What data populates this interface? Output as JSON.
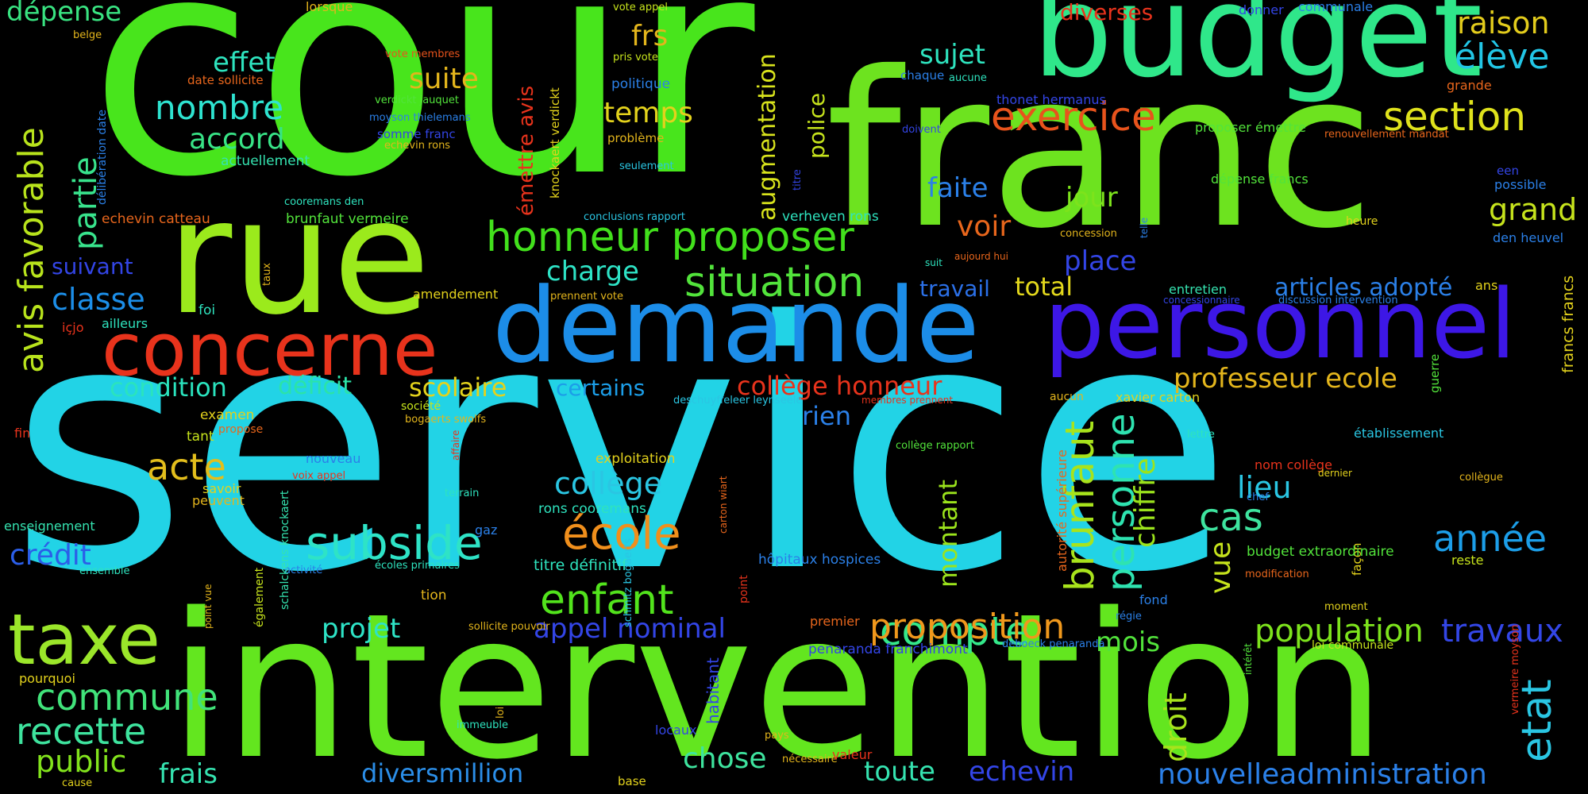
{
  "words": [
    {
      "text": "service",
      "color": "#22d3e6"
    },
    {
      "text": "cour",
      "color": "#48e51c"
    },
    {
      "text": "franc",
      "color": "#6de31f"
    },
    {
      "text": "intervention",
      "color": "#63e61f"
    },
    {
      "text": "budget",
      "color": "#2fe78a"
    },
    {
      "text": "rue",
      "color": "#9bea1c"
    },
    {
      "text": "demande",
      "color": "#1c8de8"
    },
    {
      "text": "personnel",
      "color": "#3d17e6"
    },
    {
      "text": "concerne",
      "color": "#e8331c"
    },
    {
      "text": "taxe",
      "color": "#9be62a"
    },
    {
      "text": "honneur proposer",
      "color": "#42e01c"
    },
    {
      "text": "situation",
      "color": "#52e33b"
    },
    {
      "text": "subside",
      "color": "#2ee3c6"
    },
    {
      "text": "école",
      "color": "#f08f1c"
    },
    {
      "text": "enfant",
      "color": "#52e31c"
    },
    {
      "text": "compte",
      "color": "#34e88a"
    },
    {
      "text": "exercice",
      "color": "#e8531c"
    },
    {
      "text": "section",
      "color": "#dfe21c"
    },
    {
      "text": "élève",
      "color": "#22c6e6"
    },
    {
      "text": "raison",
      "color": "#e3cc1c"
    },
    {
      "text": "grand",
      "color": "#c6e31c"
    },
    {
      "text": "année",
      "color": "#1c9ee8"
    },
    {
      "text": "etat",
      "color": "#2ac6e3"
    },
    {
      "text": "travaux",
      "color": "#3346e6"
    },
    {
      "text": "population",
      "color": "#7de31c"
    },
    {
      "text": "proposition",
      "color": "#f0981c"
    },
    {
      "text": "commune",
      "color": "#41e37a"
    },
    {
      "text": "recette",
      "color": "#3ee39e"
    },
    {
      "text": "public",
      "color": "#82e31c"
    },
    {
      "text": "frais",
      "color": "#35e3b0"
    },
    {
      "text": "crédit",
      "color": "#2b5ee8"
    },
    {
      "text": "acte",
      "color": "#e3be1c"
    },
    {
      "text": "classe",
      "color": "#1c8ee8"
    },
    {
      "text": "nombre",
      "color": "#2ee3d0"
    },
    {
      "text": "accord",
      "color": "#38e386"
    },
    {
      "text": "effet",
      "color": "#2ee3be"
    },
    {
      "text": "dépense",
      "color": "#39e381"
    },
    {
      "text": "avis favorable",
      "color": "#b8e31c"
    },
    {
      "text": "partie",
      "color": "#38e38c"
    },
    {
      "text": "suivant",
      "color": "#3345e6"
    },
    {
      "text": "condition",
      "color": "#2ae3be"
    },
    {
      "text": "déficit",
      "color": "#2be3a8"
    },
    {
      "text": "scolaire",
      "color": "#e3d21c"
    },
    {
      "text": "certains",
      "color": "#1c9ee8"
    },
    {
      "text": "collège honneur",
      "color": "#e8331c"
    },
    {
      "text": "professeur ecole",
      "color": "#e3b51c"
    },
    {
      "text": "articles adopté",
      "color": "#2b80e8"
    },
    {
      "text": "total",
      "color": "#e3d81c"
    },
    {
      "text": "place",
      "color": "#3345e6"
    },
    {
      "text": "travail",
      "color": "#2b70e8"
    },
    {
      "text": "charge",
      "color": "#2ee3c6"
    },
    {
      "text": "voir",
      "color": "#e8661c"
    },
    {
      "text": "faite",
      "color": "#2b80e8"
    },
    {
      "text": "jour",
      "color": "#7de31c"
    },
    {
      "text": "sujet",
      "color": "#2ee3be"
    },
    {
      "text": "temps",
      "color": "#e3d21c"
    },
    {
      "text": "frs",
      "color": "#e3b51c"
    },
    {
      "text": "suite",
      "color": "#e3b51c"
    },
    {
      "text": "rien",
      "color": "#2b80e8"
    },
    {
      "text": "collège",
      "color": "#2ac6e3"
    },
    {
      "text": "brunfaut",
      "color": "#a8e31c"
    },
    {
      "text": "personne",
      "color": "#2ee3b0"
    },
    {
      "text": "chiffre",
      "color": "#9be31c"
    },
    {
      "text": "cas",
      "color": "#3ee39e"
    },
    {
      "text": "lieu",
      "color": "#2ac6e3"
    },
    {
      "text": "vue",
      "color": "#c6e31c"
    },
    {
      "text": "droit",
      "color": "#a8e31c"
    },
    {
      "text": "mois",
      "color": "#52e33b"
    },
    {
      "text": "montant",
      "color": "#9be31c"
    },
    {
      "text": "projet",
      "color": "#2ee3c6"
    },
    {
      "text": "appel nominal",
      "color": "#3345e6"
    },
    {
      "text": "chose",
      "color": "#3ee39e"
    },
    {
      "text": "toute",
      "color": "#35e3b0"
    },
    {
      "text": "echevin",
      "color": "#3345e6"
    },
    {
      "text": "diversmillion",
      "color": "#2b8ee8"
    },
    {
      "text": "nouvelleadministration",
      "color": "#2b80e8"
    },
    {
      "text": "augmentation",
      "color": "#d8e31c"
    },
    {
      "text": "police",
      "color": "#c6e31c"
    },
    {
      "text": "émettre avis",
      "color": "#e8331c"
    },
    {
      "text": "diverses",
      "color": "#e8331c"
    },
    {
      "text": "knockaert verdickt",
      "color": "#e3d21c"
    },
    {
      "text": "vote appel",
      "color": "#c6e31c"
    },
    {
      "text": "communale",
      "color": "#2b80e8"
    },
    {
      "text": "donner",
      "color": "#3345e6"
    },
    {
      "text": "lorsque",
      "color": "#e3b51c"
    },
    {
      "text": "belge",
      "color": "#e3b51c"
    },
    {
      "text": "vote membres",
      "color": "#e8531c"
    },
    {
      "text": "pris vote",
      "color": "#c6e31c"
    },
    {
      "text": "politique",
      "color": "#2b80e8"
    },
    {
      "text": "date sollicite",
      "color": "#e8661c"
    },
    {
      "text": "verdickt jauquet",
      "color": "#52e33b"
    },
    {
      "text": "moyson thielemans",
      "color": "#2b80e8"
    },
    {
      "text": "somme franc",
      "color": "#3345e6"
    },
    {
      "text": "echevin rons",
      "color": "#e3b51c"
    },
    {
      "text": "actuellement",
      "color": "#35e3b0"
    },
    {
      "text": "problème",
      "color": "#e3b51c"
    },
    {
      "text": "seulement",
      "color": "#2ac6e3"
    },
    {
      "text": "délibération date",
      "color": "#2b80e8"
    },
    {
      "text": "cooremans den",
      "color": "#2ee3be"
    },
    {
      "text": "echevin catteau",
      "color": "#e8661c"
    },
    {
      "text": "brunfaut vermeire",
      "color": "#52e33b"
    },
    {
      "text": "conclusions rapport",
      "color": "#2ac6e3"
    },
    {
      "text": "verheven rons",
      "color": "#2ee3be"
    },
    {
      "text": "titre",
      "color": "#3345e6"
    },
    {
      "text": "chaque",
      "color": "#2b80e8"
    },
    {
      "text": "aucune",
      "color": "#2ee3be"
    },
    {
      "text": "doivent",
      "color": "#3345e6"
    },
    {
      "text": "thonet hermanus",
      "color": "#3345e6"
    },
    {
      "text": "proposer émettre",
      "color": "#52e33b"
    },
    {
      "text": "grande",
      "color": "#e8661c"
    },
    {
      "text": "renouvellement mandat",
      "color": "#e8661c"
    },
    {
      "text": "een",
      "color": "#3345e6"
    },
    {
      "text": "possible",
      "color": "#2b80e8"
    },
    {
      "text": "dépense francs",
      "color": "#52e33b"
    },
    {
      "text": "heure",
      "color": "#e3d21c"
    },
    {
      "text": "den heuvel",
      "color": "#2b80e8"
    },
    {
      "text": "concession",
      "color": "#e3b51c"
    },
    {
      "text": "telle",
      "color": "#2b80e8"
    },
    {
      "text": "aujourd hui",
      "color": "#e8661c"
    },
    {
      "text": "suit",
      "color": "#2ee3be"
    },
    {
      "text": "entretien",
      "color": "#35e3b0"
    },
    {
      "text": "concessionnaire",
      "color": "#3345e6"
    },
    {
      "text": "discussion intervention",
      "color": "#2b80e8"
    },
    {
      "text": "ans",
      "color": "#e3d21c"
    },
    {
      "text": "taux",
      "color": "#e3b51c"
    },
    {
      "text": "foi",
      "color": "#2ee3be"
    },
    {
      "text": "ailleurs",
      "color": "#2ee3be"
    },
    {
      "text": "içjo",
      "color": "#e8331c"
    },
    {
      "text": "amendement",
      "color": "#e3d21c"
    },
    {
      "text": "prennent vote",
      "color": "#e3b51c"
    },
    {
      "text": "examen",
      "color": "#e3d21c"
    },
    {
      "text": "tant",
      "color": "#c6e31c"
    },
    {
      "text": "propose",
      "color": "#e8661c"
    },
    {
      "text": "fin",
      "color": "#e8331c"
    },
    {
      "text": "société",
      "color": "#c6e31c"
    },
    {
      "text": "bogaerts swolfs",
      "color": "#e3b51c"
    },
    {
      "text": "deschuyffeleer leynseele",
      "color": "#2ac6e3"
    },
    {
      "text": "membres prennent",
      "color": "#e8331c"
    },
    {
      "text": "aucun",
      "color": "#e3b51c"
    },
    {
      "text": "xavier carton",
      "color": "#e3d21c"
    },
    {
      "text": "lettre",
      "color": "#2ee3be"
    },
    {
      "text": "établissement",
      "color": "#2ac6e3"
    },
    {
      "text": "guerre",
      "color": "#52e33b"
    },
    {
      "text": "francs francs",
      "color": "#e3d21c"
    },
    {
      "text": "nouveau",
      "color": "#2b80e8"
    },
    {
      "text": "voix appel",
      "color": "#e8331c"
    },
    {
      "text": "affaire",
      "color": "#e8331c"
    },
    {
      "text": "savoir",
      "color": "#e3d21c"
    },
    {
      "text": "peuvent",
      "color": "#e3b51c"
    },
    {
      "text": "terrain",
      "color": "#2ee3be"
    },
    {
      "text": "gaz",
      "color": "#2b80e8"
    },
    {
      "text": "exploitation",
      "color": "#e3d21c"
    },
    {
      "text": "collège rapport",
      "color": "#52e33b"
    },
    {
      "text": "autorité supérieure",
      "color": "#e8661c"
    },
    {
      "text": "nom collège",
      "color": "#e8331c"
    },
    {
      "text": "collègue",
      "color": "#e3b51c"
    },
    {
      "text": "dernier",
      "color": "#e3d21c"
    },
    {
      "text": "chef",
      "color": "#2b80e8"
    },
    {
      "text": "façon",
      "color": "#e3d21c"
    },
    {
      "text": "reste",
      "color": "#c6e31c"
    },
    {
      "text": "budget extraordinaire",
      "color": "#52e33b"
    },
    {
      "text": "modification",
      "color": "#e8661c"
    },
    {
      "text": "enseignement",
      "color": "#35e3b0"
    },
    {
      "text": "ensemble",
      "color": "#2ee3be"
    },
    {
      "text": "point vue",
      "color": "#e3b51c"
    },
    {
      "text": "activité",
      "color": "#2b80e8"
    },
    {
      "text": "écoles primaires",
      "color": "#2ee3be"
    },
    {
      "text": "rons cooremans",
      "color": "#2ee3be"
    },
    {
      "text": "titre définitif",
      "color": "#2ee3be"
    },
    {
      "text": "carton wiart",
      "color": "#e8661c"
    },
    {
      "text": "hôpitaux hospices",
      "color": "#2b80e8"
    },
    {
      "text": "tion",
      "color": "#e3b51c"
    },
    {
      "text": "point",
      "color": "#e8331c"
    },
    {
      "text": "premier",
      "color": "#e8661c"
    },
    {
      "text": "fond",
      "color": "#2b80e8"
    },
    {
      "text": "régie",
      "color": "#2b80e8"
    },
    {
      "text": "moment",
      "color": "#e3d21c"
    },
    {
      "text": "sollicite pouvoir",
      "color": "#e3b51c"
    },
    {
      "text": "pourquoi",
      "color": "#e3d21c"
    },
    {
      "text": "également",
      "color": "#c6e31c"
    },
    {
      "text": "schalckens knockaert",
      "color": "#35e3b0"
    },
    {
      "text": "schmitz bogaerts",
      "color": "#2ac6e3"
    },
    {
      "text": "penaranda franchimont",
      "color": "#3345e6"
    },
    {
      "text": "deboeck penaranda",
      "color": "#2b80e8"
    },
    {
      "text": "loi communale",
      "color": "#c6e31c"
    },
    {
      "text": "intérêt",
      "color": "#52e33b"
    },
    {
      "text": "vermeire moyson",
      "color": "#e8331c"
    },
    {
      "text": "loi",
      "color": "#e3b51c"
    },
    {
      "text": "immeuble",
      "color": "#2ee3be"
    },
    {
      "text": "habitant",
      "color": "#3345e6"
    },
    {
      "text": "locaux",
      "color": "#3345e6"
    },
    {
      "text": "pays",
      "color": "#e3b51c"
    },
    {
      "text": "nécessaire",
      "color": "#e3b51c"
    },
    {
      "text": "valeur",
      "color": "#e8331c"
    },
    {
      "text": "cause",
      "color": "#e3d21c"
    },
    {
      "text": "base",
      "color": "#e3d21c"
    },
    {
      "text": "aide hôpitaux",
      "color": "#e3b51c"
    },
    {
      "text": "leynseele schalckens",
      "color": "#35e3b0"
    }
  ]
}
